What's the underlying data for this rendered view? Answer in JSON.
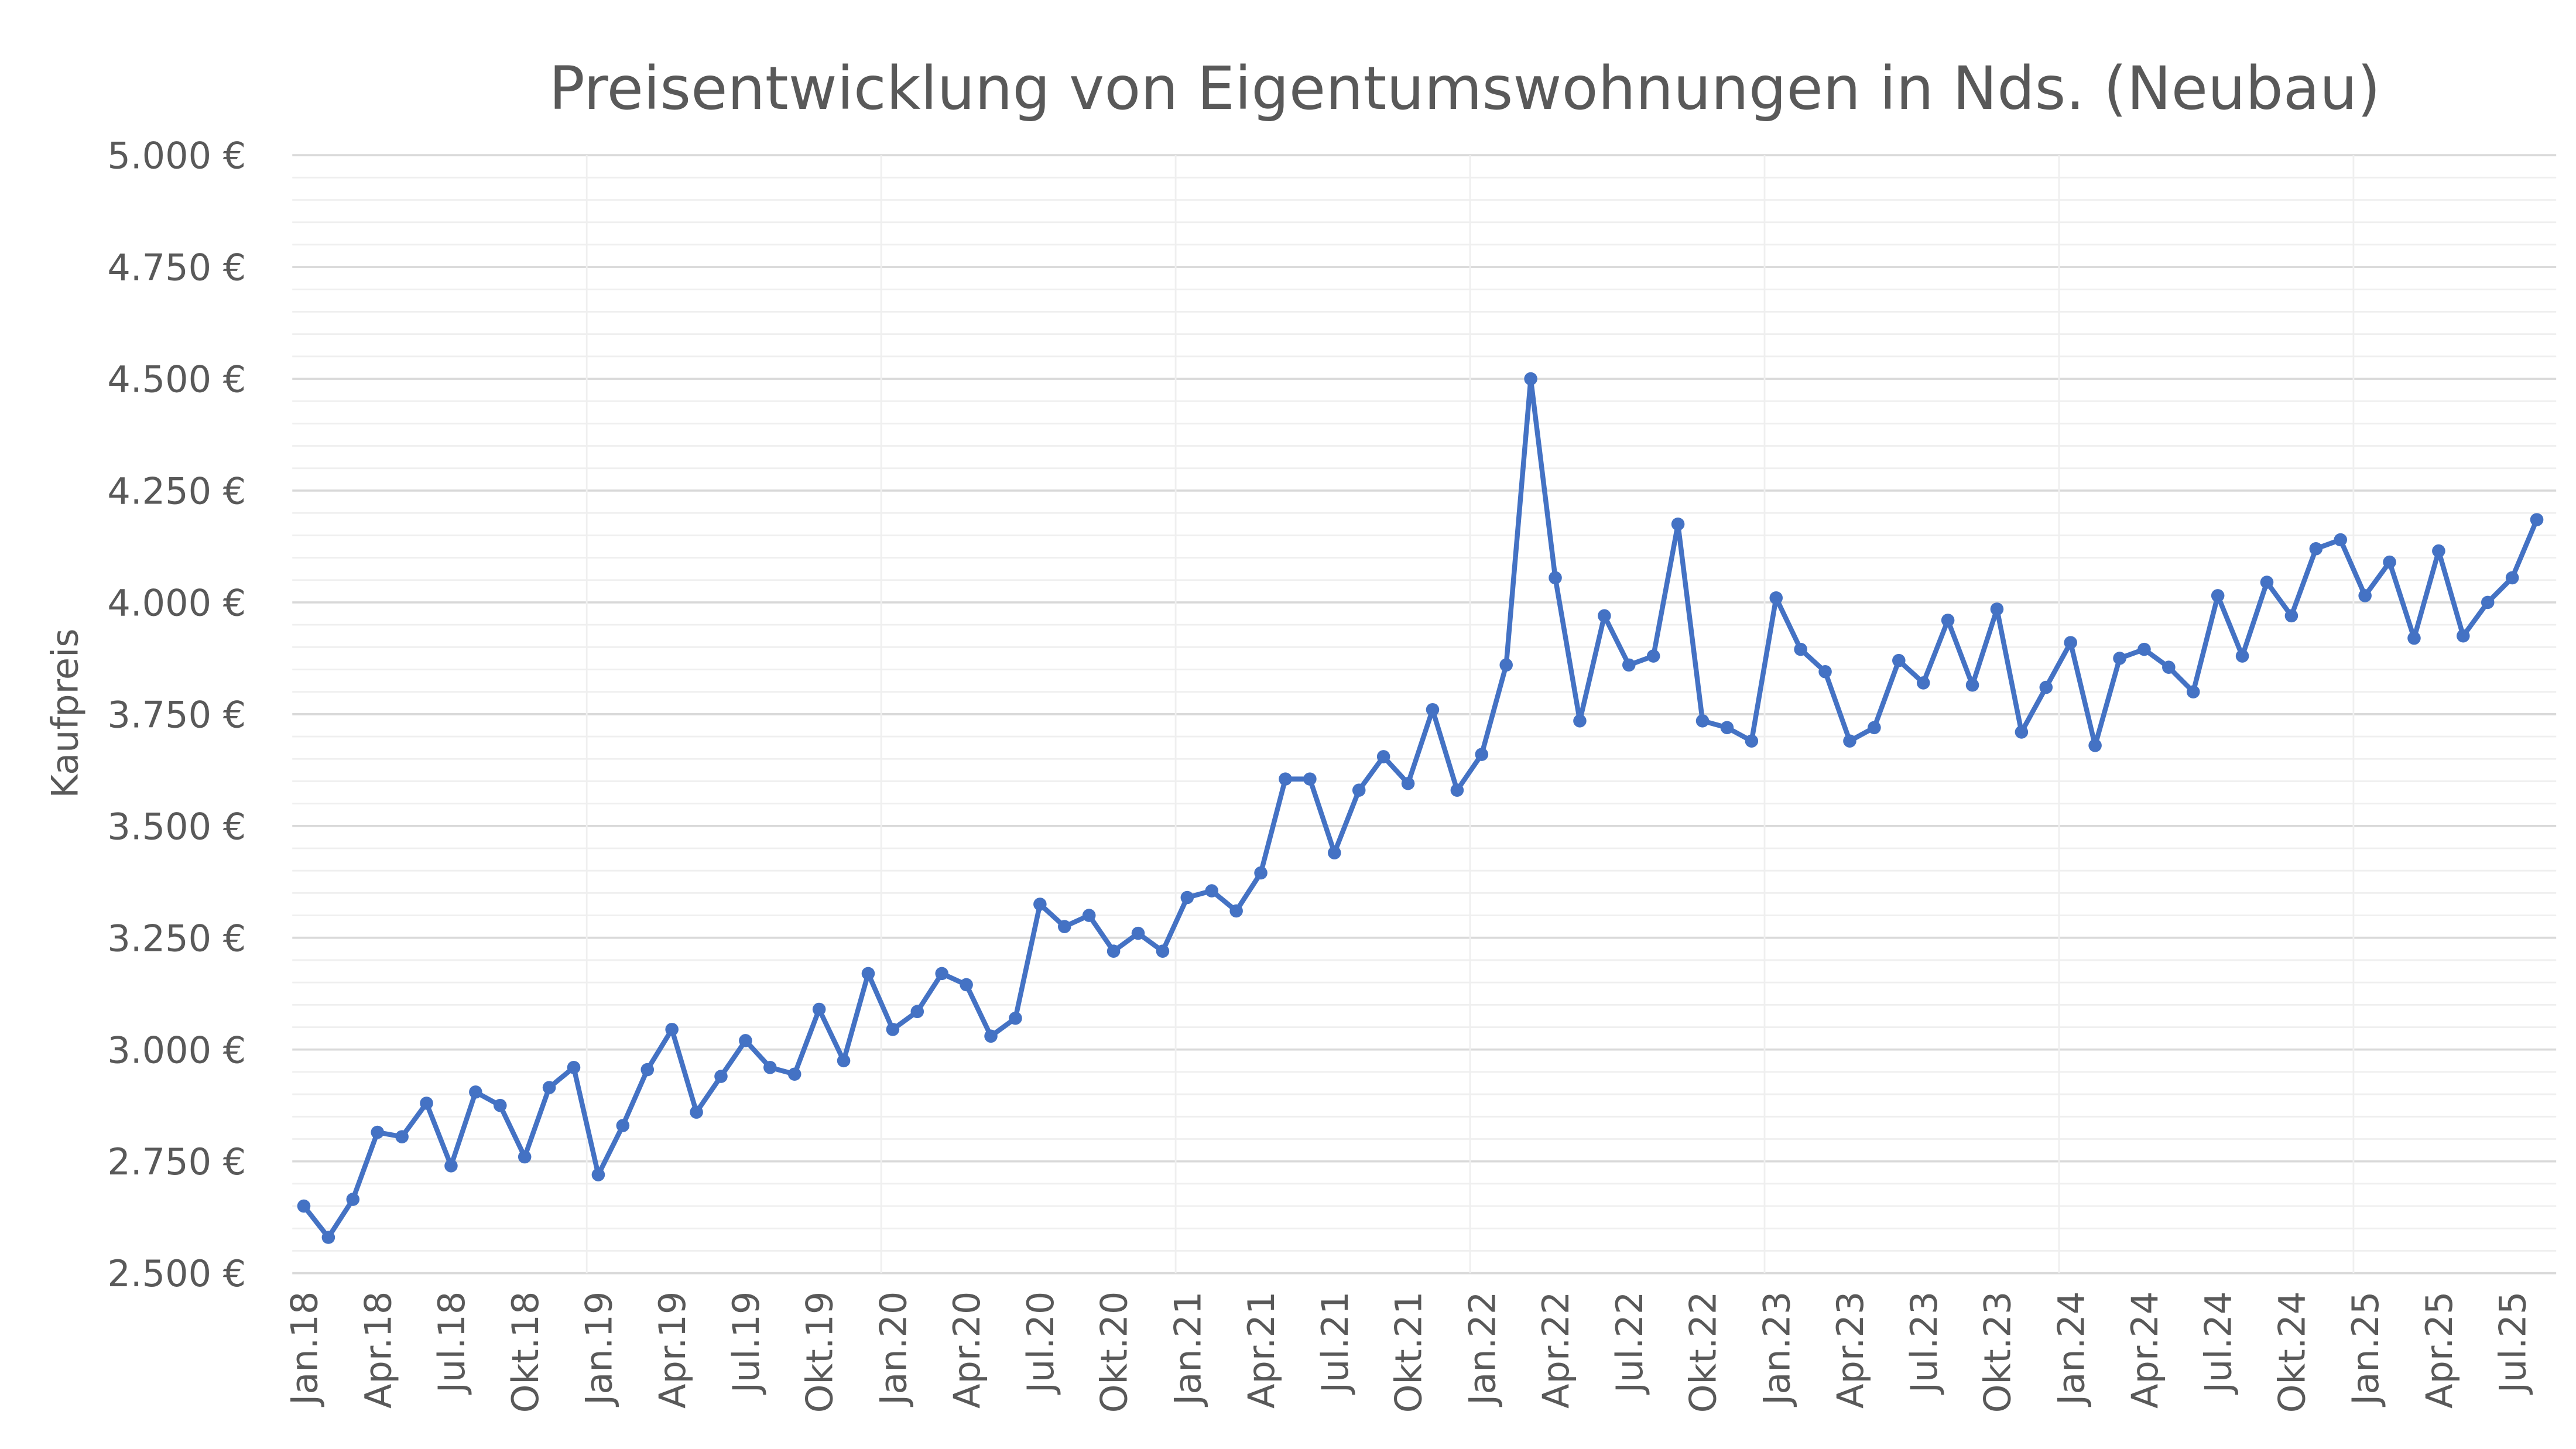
{
  "chart_data": {
    "type": "line",
    "title": "Preisentwicklung von Eigentumswohnungen in Nds. (Neubau)",
    "xlabel": "",
    "ylabel": "Kaufpreis",
    "ylim": [
      2500,
      5000
    ],
    "y_major_step": 250,
    "y_minor_step": 50,
    "y_tick_labels": [
      "2.500 €",
      "2.750 €",
      "3.000 €",
      "3.250 €",
      "3.500 €",
      "3.750 €",
      "4.000 €",
      "4.250 €",
      "4.500 €",
      "4.750 €",
      "5.000 €"
    ],
    "x_tick_labels": [
      "Jan.18",
      "Apr.18",
      "Jul.18",
      "Okt.18",
      "Jan.19",
      "Apr.19",
      "Jul.19",
      "Okt.19",
      "Jan.20",
      "Apr.20",
      "Jul.20",
      "Okt.20",
      "Jan.21",
      "Apr.21",
      "Jul.21",
      "Okt.21",
      "Jan.22",
      "Apr.22",
      "Jul.22",
      "Okt.22",
      "Jan.23",
      "Apr.23",
      "Jul.23",
      "Okt.23",
      "Jan.24",
      "Apr.24",
      "Jul.24",
      "Okt.24",
      "Jan.25",
      "Apr.25",
      "Jul.25"
    ],
    "x_start": "Jan.18",
    "x_interval": "monthly",
    "grid": true,
    "legend": "none",
    "series": [
      {
        "name": "Kaufpreis",
        "color": "#4472C4",
        "values": [
          2650,
          2580,
          2665,
          2815,
          2805,
          2880,
          2740,
          2905,
          2875,
          2760,
          2915,
          2960,
          2720,
          2830,
          2955,
          3045,
          2860,
          2940,
          3020,
          2960,
          2945,
          3090,
          2975,
          3170,
          3045,
          3085,
          3170,
          3145,
          3030,
          3070,
          3325,
          3275,
          3300,
          3220,
          3260,
          3220,
          3340,
          3355,
          3310,
          3395,
          3605,
          3605,
          3440,
          3580,
          3655,
          3595,
          3760,
          3580,
          3660,
          3860,
          4500,
          4055,
          3735,
          3970,
          3860,
          3880,
          4175,
          3735,
          3720,
          3690,
          4010,
          3895,
          3845,
          3690,
          3720,
          3870,
          3820,
          3960,
          3815,
          3985,
          3710,
          3810,
          3910,
          3680,
          3875,
          3895,
          3855,
          3800,
          4015,
          3880,
          4045,
          3970,
          4120,
          4140,
          4015,
          4090,
          3920,
          4115,
          3925,
          4000,
          4055,
          4185
        ]
      }
    ]
  }
}
